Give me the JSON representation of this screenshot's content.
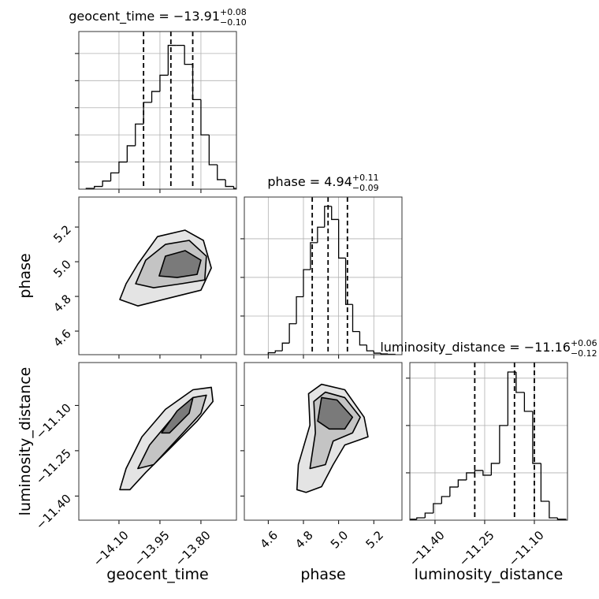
{
  "chart_data": [
    {
      "type": "histogram",
      "title": "geocent_time = −13.91",
      "title_upper": "+0.08",
      "title_lower": "−0.10",
      "bins": [
        -14.22,
        -14.19,
        -14.16,
        -14.13,
        -14.1,
        -14.07,
        -14.04,
        -14.01,
        -13.98,
        -13.95,
        -13.92,
        -13.89,
        -13.86,
        -13.83,
        -13.8,
        -13.77,
        -13.74,
        -13.71,
        -13.68,
        -13.65,
        -13.62
      ],
      "counts": [
        0.03,
        0.1,
        0.3,
        0.6,
        1.0,
        1.6,
        2.4,
        3.2,
        3.6,
        4.2,
        5.3,
        5.3,
        4.6,
        3.3,
        2.0,
        0.9,
        0.35,
        0.1,
        0.03,
        0.01
      ],
      "quantiles": [
        -14.01,
        -13.91,
        -13.83
      ],
      "xlim": [
        -14.247,
        -13.67
      ],
      "ylim": [
        0,
        5.81
      ],
      "yticks": [
        1,
        2,
        3,
        4,
        5
      ],
      "grid": true,
      "color": "#000000"
    },
    {
      "type": "contour",
      "ylabel": "phase",
      "xlim": [
        -14.247,
        -13.67
      ],
      "ylim": [
        4.464,
        5.373
      ],
      "yticks": [
        4.6,
        4.8,
        {
          "value": 5.0,
          "label": "5.0"
        },
        5.2
      ],
      "contours": [
        {
          "x": [
            -14.097,
            -14.074,
            -14.031,
            -13.959,
            -13.858,
            -13.791,
            -13.762,
            -13.8,
            -13.915,
            -14.031
          ],
          "y": [
            4.782,
            4.873,
            4.986,
            5.145,
            5.182,
            5.123,
            4.964,
            4.836,
            4.791,
            4.745
          ]
        },
        {
          "x": [
            -14.039,
            -14.002,
            -13.93,
            -13.843,
            -13.78,
            -13.786,
            -13.872,
            -13.973
          ],
          "y": [
            4.873,
            5.009,
            5.1,
            5.123,
            5.032,
            4.895,
            4.873,
            4.85
          ]
        },
        {
          "x": [
            -13.953,
            -13.93,
            -13.858,
            -13.8,
            -13.814,
            -13.887
          ],
          "y": [
            4.918,
            5.032,
            5.064,
            5.009,
            4.927,
            4.909
          ]
        }
      ]
    },
    {
      "type": "histogram",
      "title": "phase = 4.94",
      "title_upper": "+0.11",
      "title_lower": "−0.09",
      "bins": [
        4.6,
        4.64,
        4.68,
        4.72,
        4.76,
        4.8,
        4.84,
        4.88,
        4.92,
        4.96,
        5.0,
        5.04,
        5.08,
        5.12,
        5.16,
        5.2,
        5.24,
        5.28,
        5.32
      ],
      "counts": [
        0.05,
        0.1,
        0.3,
        0.8,
        1.5,
        2.2,
        2.9,
        3.3,
        3.84,
        3.5,
        2.5,
        1.3,
        0.6,
        0.25,
        0.1,
        0.04,
        0.02,
        0.01
      ],
      "quantiles": [
        4.85,
        4.94,
        5.05
      ],
      "xlim": [
        4.464,
        5.36
      ],
      "ylim": [
        0,
        4.08
      ],
      "yticks": [
        1,
        2,
        3
      ],
      "grid": true,
      "color": "#000000"
    },
    {
      "type": "contour",
      "xlabel": "geocent_time",
      "ylabel": "luminosity_distance",
      "xlim": [
        -14.247,
        -13.67
      ],
      "ylim": [
        -11.48,
        -10.958
      ],
      "xticks": [
        {
          "value": -14.1,
          "label": "−14.10"
        },
        {
          "value": -13.95,
          "label": "−13.95"
        },
        {
          "value": -13.8,
          "label": "−13.80"
        }
      ],
      "yticks": [
        {
          "value": -11.4,
          "label": "−11.40"
        },
        {
          "value": -11.25,
          "label": "−11.25"
        },
        {
          "value": -11.1,
          "label": "−11.10"
        }
      ],
      "contours": [
        {
          "x": [
            -14.097,
            -14.074,
            -14.016,
            -13.93,
            -13.829,
            -13.762,
            -13.756,
            -13.814,
            -13.915,
            -14.002,
            -14.06
          ],
          "y": [
            -11.379,
            -11.309,
            -11.204,
            -11.113,
            -11.048,
            -11.04,
            -11.087,
            -11.152,
            -11.244,
            -11.322,
            -11.379
          ]
        },
        {
          "x": [
            -14.031,
            -13.988,
            -13.915,
            -13.829,
            -13.78,
            -13.8,
            -13.887,
            -13.973
          ],
          "y": [
            -11.309,
            -11.231,
            -11.152,
            -11.074,
            -11.066,
            -11.126,
            -11.212,
            -11.296
          ]
        },
        {
          "x": [
            -13.944,
            -13.887,
            -13.829,
            -13.843,
            -13.915
          ],
          "y": [
            -11.191,
            -11.118,
            -11.074,
            -11.126,
            -11.191
          ]
        }
      ]
    },
    {
      "type": "contour",
      "xlabel": "phase",
      "xlim": [
        4.464,
        5.36
      ],
      "ylim": [
        -11.48,
        -10.958
      ],
      "xticks": [
        4.6,
        4.8,
        {
          "value": 5.0,
          "label": "5.0"
        },
        5.2
      ],
      "contours": [
        {
          "x": [
            4.763,
            4.771,
            4.837,
            4.829,
            4.903,
            5.035,
            5.145,
            5.167,
            5.035,
            4.969,
            4.903,
            4.815
          ],
          "y": [
            -11.379,
            -11.296,
            -11.165,
            -11.061,
            -11.03,
            -11.048,
            -11.139,
            -11.204,
            -11.231,
            -11.296,
            -11.369,
            -11.388
          ]
        },
        {
          "x": [
            4.837,
            4.868,
            4.859,
            4.925,
            5.035,
            5.123,
            5.079,
            4.969,
            4.925
          ],
          "y": [
            -11.309,
            -11.191,
            -11.087,
            -11.056,
            -11.074,
            -11.139,
            -11.191,
            -11.218,
            -11.296
          ]
        },
        {
          "x": [
            4.881,
            4.903,
            4.991,
            5.079,
            5.035,
            4.947
          ],
          "y": [
            -11.152,
            -11.074,
            -11.082,
            -11.139,
            -11.178,
            -11.178
          ]
        }
      ]
    },
    {
      "type": "histogram",
      "title": "luminosity_distance = −11.16",
      "title_upper": "+0.06",
      "title_lower": "−0.12",
      "xlabel": "luminosity_distance",
      "bins": [
        -11.48,
        -11.455,
        -11.43,
        -11.405,
        -11.38,
        -11.355,
        -11.33,
        -11.305,
        -11.28,
        -11.255,
        -11.23,
        -11.205,
        -11.18,
        -11.155,
        -11.13,
        -11.105,
        -11.08,
        -11.055,
        -11.03,
        -11.005
      ],
      "counts": [
        0.02,
        0.05,
        0.15,
        0.35,
        0.5,
        0.7,
        0.85,
        1.0,
        1.05,
        0.95,
        1.2,
        2.0,
        3.13,
        2.7,
        2.3,
        1.2,
        0.4,
        0.05,
        0.02
      ],
      "quantiles": [
        -11.28,
        -11.16,
        -11.1
      ],
      "xlim": [
        -11.476,
        -11.0
      ],
      "ylim": [
        0,
        3.33
      ],
      "yticks": [
        1,
        2,
        3
      ],
      "grid": true,
      "color": "#000000",
      "xticks": [
        {
          "value": -11.4,
          "label": "−11.40"
        },
        {
          "value": -11.25,
          "label": "−11.25"
        },
        {
          "value": -11.1,
          "label": "−11.10"
        }
      ]
    }
  ]
}
